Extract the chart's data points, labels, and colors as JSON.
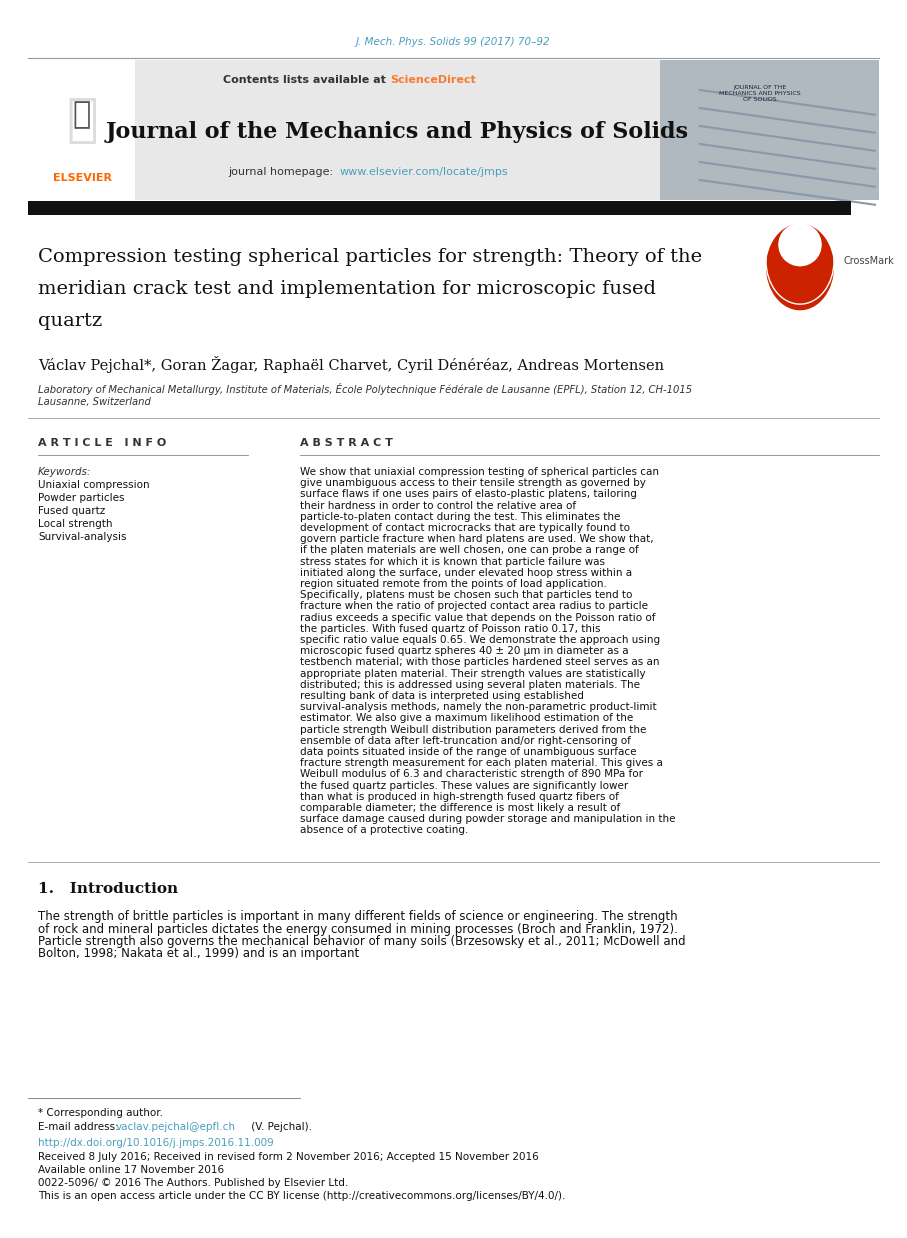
{
  "page_width": 9.07,
  "page_height": 12.38,
  "bg_color": "#ffffff",
  "journal_ref": "J. Mech. Phys. Solids 99 (2017) 70–92",
  "journal_ref_color": "#4a9fbe",
  "header_bg": "#e8e8e8",
  "header_text": "Contents lists available at",
  "science_direct": "ScienceDirect",
  "science_direct_color": "#f97b2d",
  "journal_name": "Journal of the Mechanics and Physics of Solids",
  "journal_homepage_label": "journal homepage:",
  "journal_homepage_url": "www.elsevier.com/locate/jmps",
  "journal_homepage_color": "#4a9fbe",
  "article_title_line1": "Compression testing spherical particles for strength: Theory of the",
  "article_title_line2": "meridian crack test and implementation for microscopic fused",
  "article_title_line3": "quartz",
  "authors": "Václav Pejchal*, Goran Žagar, Raphaël Charvet, Cyril Dénéréaz, Andreas Mortensen",
  "affiliation": "Laboratory of Mechanical Metallurgy, Institute of Materials, École Polytechnique Fédérale de Lausanne (EPFL), Station 12, CH-1015",
  "affiliation2": "Lausanne, Switzerland",
  "article_info_title": "A R T I C L E   I N F O",
  "abstract_title": "A B S T R A C T",
  "keywords_label": "Keywords:",
  "keywords": [
    "Uniaxial compression",
    "Powder particles",
    "Fused quartz",
    "Local strength",
    "Survival-analysis"
  ],
  "abstract_text": "We show that uniaxial compression testing of spherical particles can give unambiguous access to their tensile strength as governed by surface flaws if one uses pairs of elasto-plastic platens, tailoring their hardness in order to control the relative area of particle-to-platen contact during the test. This eliminates the development of contact microcracks that are typically found to govern particle fracture when hard platens are used. We show that, if the platen materials are well chosen, one can probe a range of stress states for which it is known that particle failure was initiated along the surface, under elevated hoop stress within a region situated remote from the points of load application. Specifically, platens must be chosen such that particles tend to fracture when the ratio of projected contact area radius to particle radius exceeds a specific value that depends on the Poisson ratio of the particles. With fused quartz of Poisson ratio 0.17, this specific ratio value equals 0.65. We demonstrate the approach using microscopic fused quartz spheres 40 ± 20 μm in diameter as a testbench material; with those particles hardened steel serves as an appropriate platen material. Their strength values are statistically distributed; this is addressed using several platen materials. The resulting bank of data is interpreted using established survival-analysis methods, namely the non-parametric product-limit estimator. We also give a maximum likelihood estimation of the particle strength Weibull distribution parameters derived from the ensemble of data after left-truncation and/or right-censoring of data points situated inside of the range of unambiguous surface fracture strength measurement for each platen material. This gives a Weibull modulus of 6.3 and characteristic strength of 890 MPa for the fused quartz particles. These values are significantly lower than what is produced in high-strength fused quartz fibers of comparable diameter; the difference is most likely a result of surface damage caused during powder storage and manipulation in the absence of a protective coating.",
  "section1_title": "1.   Introduction",
  "intro_text": "    The strength of brittle particles is important in many different fields of science or engineering. The strength of rock and mineral particles dictates the energy consumed in mining processes (Broch and Franklin, 1972). Particle strength also governs the mechanical behavior of many soils (Brzesowsky et al., 2011; McDowell and Bolton, 1998; Nakata et al., 1999) and is an important",
  "footnote_star": "* Corresponding author.",
  "footnote_email_label": "E-mail address:",
  "footnote_email": "vaclav.pejchal@epfl.ch",
  "footnote_email_color": "#4a9fbe",
  "footnote_email_suffix": " (V. Pejchal).",
  "doi": "http://dx.doi.org/10.1016/j.jmps.2016.11.009",
  "doi_color": "#4a9fbe",
  "received": "Received 8 July 2016; Received in revised form 2 November 2016; Accepted 15 November 2016",
  "available": "Available online 17 November 2016",
  "issn": "0022-5096/ © 2016 The Authors. Published by Elsevier Ltd.",
  "license": "This is an open access article under the CC BY license (http://creativecommons.org/licenses/BY/4.0/).",
  "elsevier_orange": "#ff6600",
  "crossmark_color": "#cc2200"
}
